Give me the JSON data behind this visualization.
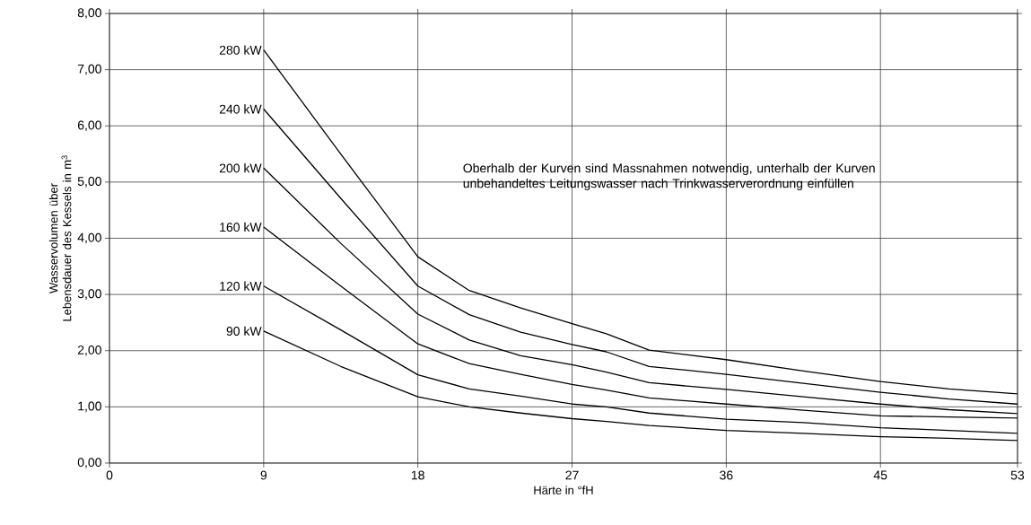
{
  "chart_data": {
    "type": "line",
    "xlabel": "Härte in °fH",
    "ylabel": "Wasservolumen über Lebensdauer des Kessels in m$^{3}$",
    "x": [
      9,
      13.5,
      18,
      21,
      24,
      27,
      29,
      31.5,
      36,
      40.5,
      45,
      49,
      53
    ],
    "xlim": [
      0,
      53
    ],
    "xticks": [
      0,
      9,
      18,
      27,
      36,
      45,
      53
    ],
    "ylim": [
      0,
      8
    ],
    "yticks": [
      {
        "value": 0,
        "label": "0,00"
      },
      {
        "value": 1,
        "label": "1,00"
      },
      {
        "value": 2,
        "label": "2,00"
      },
      {
        "value": 3,
        "label": "3,00"
      },
      {
        "value": 4,
        "label": "4,00"
      },
      {
        "value": 5,
        "label": "5,00"
      },
      {
        "value": 6,
        "label": "6,00"
      },
      {
        "value": 7,
        "label": "7,00"
      },
      {
        "value": 8,
        "label": "8,00"
      }
    ],
    "grid": true,
    "legend": false,
    "line_style": "solid",
    "series": [
      {
        "name": "280 kW",
        "color": "#000000",
        "values": [
          7.35,
          5.5,
          3.67,
          3.07,
          2.76,
          2.48,
          2.3,
          2.01,
          1.84,
          1.64,
          1.45,
          1.32,
          1.23
        ]
      },
      {
        "name": "240 kW",
        "color": "#000000",
        "values": [
          6.3,
          4.71,
          3.15,
          2.64,
          2.33,
          2.11,
          1.98,
          1.72,
          1.58,
          1.42,
          1.26,
          1.14,
          1.05
        ]
      },
      {
        "name": "200 kW",
        "color": "#000000",
        "values": [
          5.25,
          3.91,
          2.65,
          2.19,
          1.91,
          1.75,
          1.62,
          1.43,
          1.31,
          1.18,
          1.05,
          0.95,
          0.88
        ]
      },
      {
        "name": "160 kW",
        "color": "#000000",
        "values": [
          4.2,
          3.15,
          2.12,
          1.77,
          1.58,
          1.4,
          1.3,
          1.16,
          1.05,
          0.94,
          0.84,
          0.82,
          0.8
        ]
      },
      {
        "name": "120 kW",
        "color": "#000000",
        "values": [
          3.15,
          2.37,
          1.57,
          1.32,
          1.19,
          1.05,
          1.0,
          0.89,
          0.78,
          0.72,
          0.63,
          0.58,
          0.53
        ]
      },
      {
        "name": "90 kW",
        "color": "#000000",
        "values": [
          2.35,
          1.72,
          1.18,
          1.0,
          0.89,
          0.79,
          0.74,
          0.67,
          0.58,
          0.53,
          0.47,
          0.44,
          0.4
        ]
      }
    ],
    "annotations": [
      "Oberhalb der Kurven sind Massnahmen notwendig, unterhalb der Kurven unbehandeltes Leitungswasser nach Trinkwasserverordnung einfüllen"
    ]
  }
}
